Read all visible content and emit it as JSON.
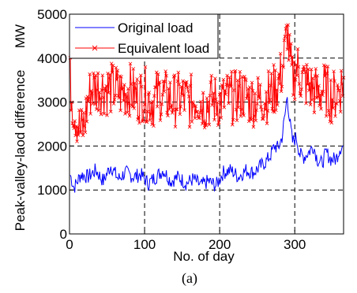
{
  "caption": "(a)",
  "chart_data": {
    "type": "line",
    "title": "",
    "xlabel": "No. of day",
    "ylabel": "Peak-valley-laod difference",
    "yunit": "MW",
    "xlim": [
      0,
      365
    ],
    "ylim": [
      0,
      5000
    ],
    "xticks": [
      0,
      100,
      200,
      300
    ],
    "yticks": [
      0,
      1000,
      2000,
      3000,
      4000,
      5000
    ],
    "grid": true,
    "legend_position": "top-left",
    "series": [
      {
        "name": "Original load",
        "color": "#0000ff",
        "marker": "none",
        "anchors": [
          [
            0,
            1400
          ],
          [
            6,
            1050
          ],
          [
            15,
            1350
          ],
          [
            25,
            1300
          ],
          [
            35,
            1450
          ],
          [
            45,
            1200
          ],
          [
            55,
            1550
          ],
          [
            65,
            1250
          ],
          [
            75,
            1400
          ],
          [
            85,
            1300
          ],
          [
            95,
            1350
          ],
          [
            105,
            1150
          ],
          [
            115,
            1300
          ],
          [
            125,
            1450
          ],
          [
            135,
            1200
          ],
          [
            145,
            1300
          ],
          [
            155,
            1150
          ],
          [
            165,
            1250
          ],
          [
            175,
            1100
          ],
          [
            185,
            1200
          ],
          [
            195,
            1100
          ],
          [
            205,
            1400
          ],
          [
            215,
            1450
          ],
          [
            225,
            1300
          ],
          [
            235,
            1450
          ],
          [
            245,
            1400
          ],
          [
            255,
            1550
          ],
          [
            262,
            1650
          ],
          [
            268,
            1800
          ],
          [
            273,
            2000
          ],
          [
            278,
            1950
          ],
          [
            283,
            2200
          ],
          [
            287,
            2700
          ],
          [
            290,
            3150
          ],
          [
            293,
            2600
          ],
          [
            297,
            2100
          ],
          [
            302,
            2200
          ],
          [
            307,
            1800
          ],
          [
            312,
            1750
          ],
          [
            318,
            1850
          ],
          [
            325,
            2000
          ],
          [
            330,
            1700
          ],
          [
            336,
            1600
          ],
          [
            342,
            1850
          ],
          [
            348,
            1700
          ],
          [
            355,
            1700
          ],
          [
            360,
            1950
          ],
          [
            365,
            2000
          ]
        ],
        "noise": 170
      },
      {
        "name": "Equivalent load",
        "color": "#ff0000",
        "marker": "x",
        "anchors": [
          [
            0,
            3600
          ],
          [
            5,
            2900
          ],
          [
            10,
            2600
          ],
          [
            15,
            2300
          ],
          [
            20,
            2500
          ],
          [
            25,
            3100
          ],
          [
            30,
            3300
          ],
          [
            40,
            3350
          ],
          [
            50,
            3300
          ],
          [
            60,
            3300
          ],
          [
            70,
            3200
          ],
          [
            80,
            3300
          ],
          [
            90,
            3100
          ],
          [
            100,
            3200
          ],
          [
            110,
            3000
          ],
          [
            120,
            3200
          ],
          [
            130,
            3100
          ],
          [
            140,
            3050
          ],
          [
            150,
            3100
          ],
          [
            160,
            3000
          ],
          [
            170,
            3100
          ],
          [
            180,
            2950
          ],
          [
            190,
            3050
          ],
          [
            200,
            3000
          ],
          [
            210,
            3100
          ],
          [
            220,
            3100
          ],
          [
            230,
            3200
          ],
          [
            240,
            3050
          ],
          [
            250,
            3050
          ],
          [
            260,
            3100
          ],
          [
            270,
            3200
          ],
          [
            280,
            3500
          ],
          [
            285,
            3900
          ],
          [
            288,
            4300
          ],
          [
            290,
            4700
          ],
          [
            293,
            4000
          ],
          [
            297,
            3500
          ],
          [
            303,
            3800
          ],
          [
            310,
            3500
          ],
          [
            320,
            3350
          ],
          [
            330,
            3200
          ],
          [
            340,
            3300
          ],
          [
            350,
            3100
          ],
          [
            360,
            3300
          ],
          [
            365,
            3500
          ]
        ],
        "noise": 620
      }
    ]
  }
}
